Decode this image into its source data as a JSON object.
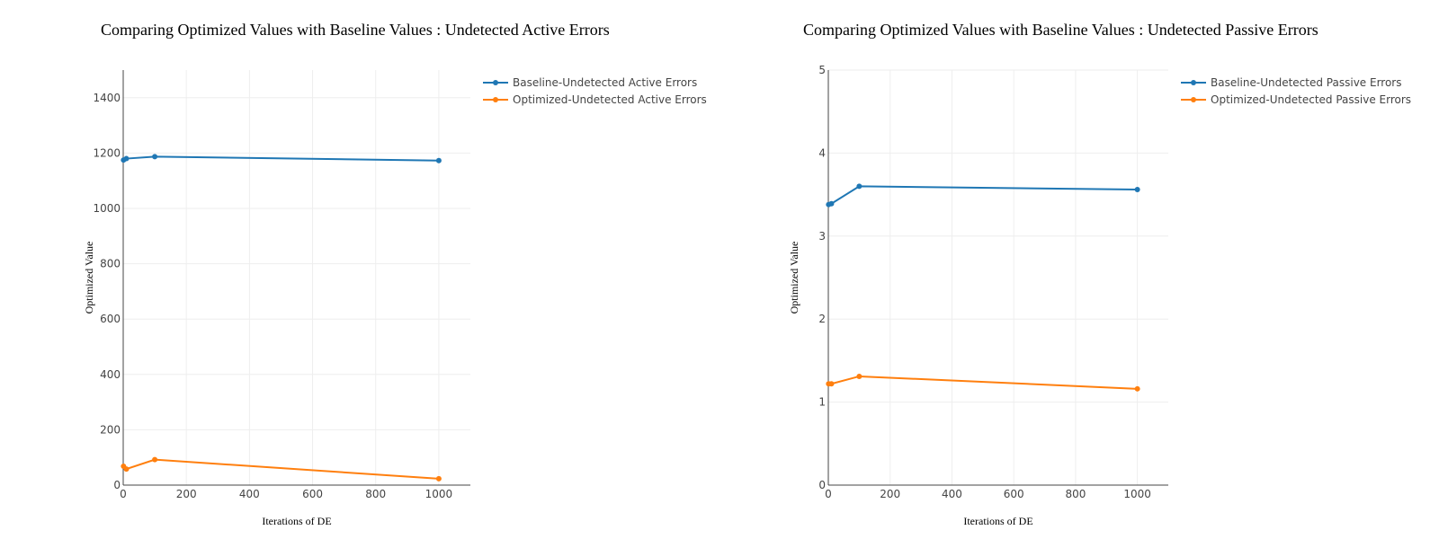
{
  "chart_data": [
    {
      "type": "line",
      "title": "Comparing Optimized Values with Baseline Values : Undetected Active Errors",
      "xlabel": "Iterations of DE",
      "ylabel": "Optimized Value",
      "xlim": [
        0,
        1100
      ],
      "ylim": [
        0,
        1500
      ],
      "xticks": [
        0,
        200,
        400,
        600,
        800,
        1000
      ],
      "yticks": [
        0,
        200,
        400,
        600,
        800,
        1000,
        1200,
        1400
      ],
      "grid": true,
      "legend_position": "top-right",
      "series": [
        {
          "name": "Baseline-Undetected Active Errors",
          "color": "#1f77b4",
          "x": [
            1,
            10,
            100,
            1000
          ],
          "y": [
            1175,
            1180,
            1187,
            1173
          ]
        },
        {
          "name": "Optimized-Undetected Active Errors",
          "color": "#ff7f0e",
          "x": [
            1,
            10,
            100,
            1000
          ],
          "y": [
            68,
            58,
            92,
            23
          ]
        }
      ]
    },
    {
      "type": "line",
      "title": "Comparing Optimized Values with Baseline Values : Undetected Passive Errors",
      "xlabel": "Iterations of DE",
      "ylabel": "Optimized Value",
      "xlim": [
        0,
        1100
      ],
      "ylim": [
        0,
        5
      ],
      "xticks": [
        0,
        200,
        400,
        600,
        800,
        1000
      ],
      "yticks": [
        0,
        1,
        2,
        3,
        4,
        5
      ],
      "grid": true,
      "legend_position": "top-right",
      "series": [
        {
          "name": "Baseline-Undetected Passive Errors",
          "color": "#1f77b4",
          "x": [
            1,
            10,
            100,
            1000
          ],
          "y": [
            3.38,
            3.39,
            3.6,
            3.56
          ]
        },
        {
          "name": "Optimized-Undetected Passive Errors",
          "color": "#ff7f0e",
          "x": [
            1,
            10,
            100,
            1000
          ],
          "y": [
            1.22,
            1.22,
            1.31,
            1.16
          ]
        }
      ]
    }
  ]
}
